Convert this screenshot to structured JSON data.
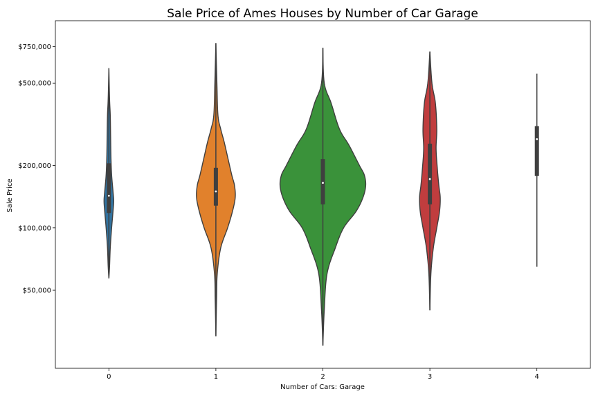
{
  "chart_data": {
    "type": "violin",
    "title": "Sale Price of Ames Houses by Number of Car Garage",
    "xlabel": "Number of Cars: Garage",
    "ylabel": "Sale Price",
    "y_scale": "log",
    "ylim": [
      21000,
      1000000
    ],
    "categories": [
      "0",
      "1",
      "2",
      "3",
      "4"
    ],
    "y_ticks": [
      {
        "value": 50000,
        "label": "$50,000"
      },
      {
        "value": 100000,
        "label": "$100,000"
      },
      {
        "value": 200000,
        "label": "$200,000"
      },
      {
        "value": 500000,
        "label": "$500,000"
      },
      {
        "value": 750000,
        "label": "$750,000"
      }
    ],
    "colors": [
      "#3274a1",
      "#e1812c",
      "#3a923a",
      "#c03d3e",
      "#9372b2"
    ],
    "violins": [
      {
        "category": "0",
        "min": 57000,
        "q1": 118000,
        "median": 143000,
        "q3": 205000,
        "max": 590000,
        "density": [
          [
            57000,
            0
          ],
          [
            65000,
            1
          ],
          [
            80000,
            2
          ],
          [
            100000,
            4
          ],
          [
            120000,
            6
          ],
          [
            135000,
            7
          ],
          [
            150000,
            6
          ],
          [
            180000,
            4
          ],
          [
            220000,
            3
          ],
          [
            280000,
            2.5
          ],
          [
            350000,
            2
          ],
          [
            420000,
            1
          ],
          [
            590000,
            0
          ]
        ]
      },
      {
        "category": "1",
        "min": 30000,
        "q1": 128000,
        "median": 150000,
        "q3": 195000,
        "max": 780000,
        "density": [
          [
            30000,
            0
          ],
          [
            45000,
            1
          ],
          [
            60000,
            2
          ],
          [
            80000,
            7
          ],
          [
            100000,
            17
          ],
          [
            120000,
            24
          ],
          [
            140000,
            28
          ],
          [
            160000,
            27
          ],
          [
            180000,
            23
          ],
          [
            220000,
            17
          ],
          [
            260000,
            12
          ],
          [
            300000,
            7
          ],
          [
            350000,
            3
          ],
          [
            500000,
            1.5
          ],
          [
            780000,
            0
          ]
        ]
      },
      {
        "category": "2",
        "min": 27000,
        "q1": 130000,
        "median": 165000,
        "q3": 215000,
        "max": 740000,
        "density": [
          [
            27000,
            0
          ],
          [
            40000,
            2
          ],
          [
            60000,
            6
          ],
          [
            80000,
            18
          ],
          [
            100000,
            30
          ],
          [
            120000,
            48
          ],
          [
            140000,
            58
          ],
          [
            160000,
            62
          ],
          [
            180000,
            60
          ],
          [
            200000,
            53
          ],
          [
            250000,
            38
          ],
          [
            300000,
            24
          ],
          [
            400000,
            12
          ],
          [
            500000,
            2
          ],
          [
            740000,
            0
          ]
        ]
      },
      {
        "category": "3",
        "min": 40000,
        "q1": 130000,
        "median": 172000,
        "q3": 255000,
        "max": 710000,
        "density": [
          [
            40000,
            0
          ],
          [
            60000,
            1.5
          ],
          [
            80000,
            5
          ],
          [
            100000,
            10
          ],
          [
            120000,
            14
          ],
          [
            140000,
            15
          ],
          [
            160000,
            13
          ],
          [
            190000,
            11
          ],
          [
            240000,
            9
          ],
          [
            300000,
            10
          ],
          [
            400000,
            8
          ],
          [
            500000,
            3
          ],
          [
            710000,
            0
          ]
        ]
      },
      {
        "category": "4",
        "min": 65000,
        "q1": 178000,
        "median": 268000,
        "q3": 310000,
        "max": 555000,
        "density": []
      }
    ]
  }
}
